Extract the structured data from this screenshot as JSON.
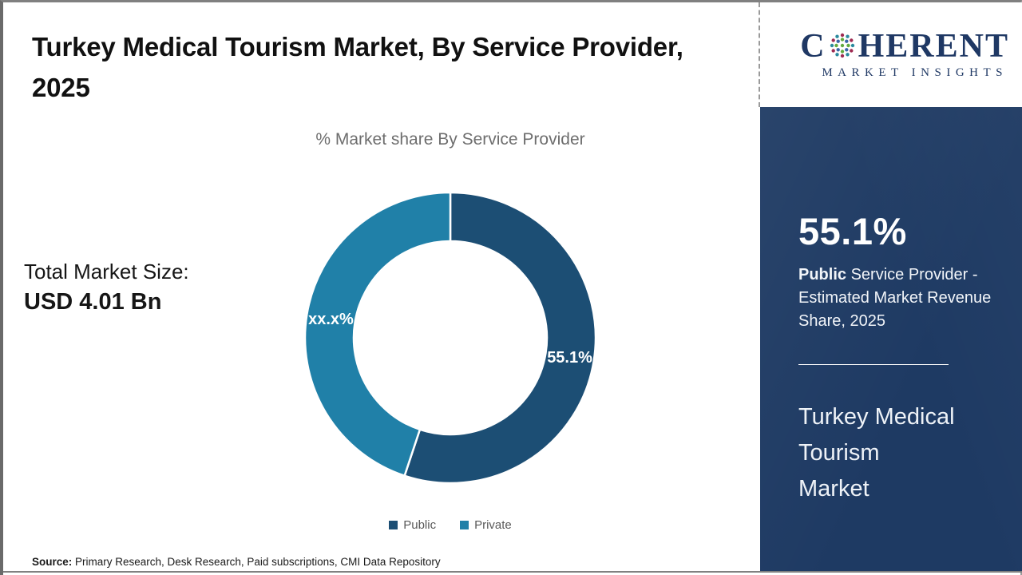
{
  "header": {
    "title": "Turkey Medical Tourism Market, By Service Provider, 2025"
  },
  "logo": {
    "brand_first_letter": "C",
    "brand_rest": "HERENT",
    "brand_sub": "MARKET INSIGHTS",
    "color": "#1f3864"
  },
  "chart_data": {
    "type": "pie",
    "donut": true,
    "title": "% Market share By Service Provider",
    "categories": [
      "Public",
      "Private"
    ],
    "values": [
      55.1,
      44.9
    ],
    "slice_labels": [
      "55.1%",
      "xx.x%"
    ],
    "colors": [
      "#1c4e74",
      "#2080a8"
    ],
    "legend_position": "bottom",
    "start_angle_deg": 0
  },
  "market_size": {
    "label": "Total Market Size:",
    "value": "USD 4.01 Bn"
  },
  "sidebar": {
    "background": "#1e3a63",
    "highlight_value": "55.1%",
    "highlight_bold": "Public",
    "highlight_rest": " Service Provider - Estimated Market Revenue Share, 2025",
    "footer_lines": [
      "Turkey Medical",
      "Tourism",
      "Market"
    ]
  },
  "source": {
    "label": "Source:",
    "text": " Primary Research, Desk Research, Paid subscriptions, CMI Data Repository"
  }
}
